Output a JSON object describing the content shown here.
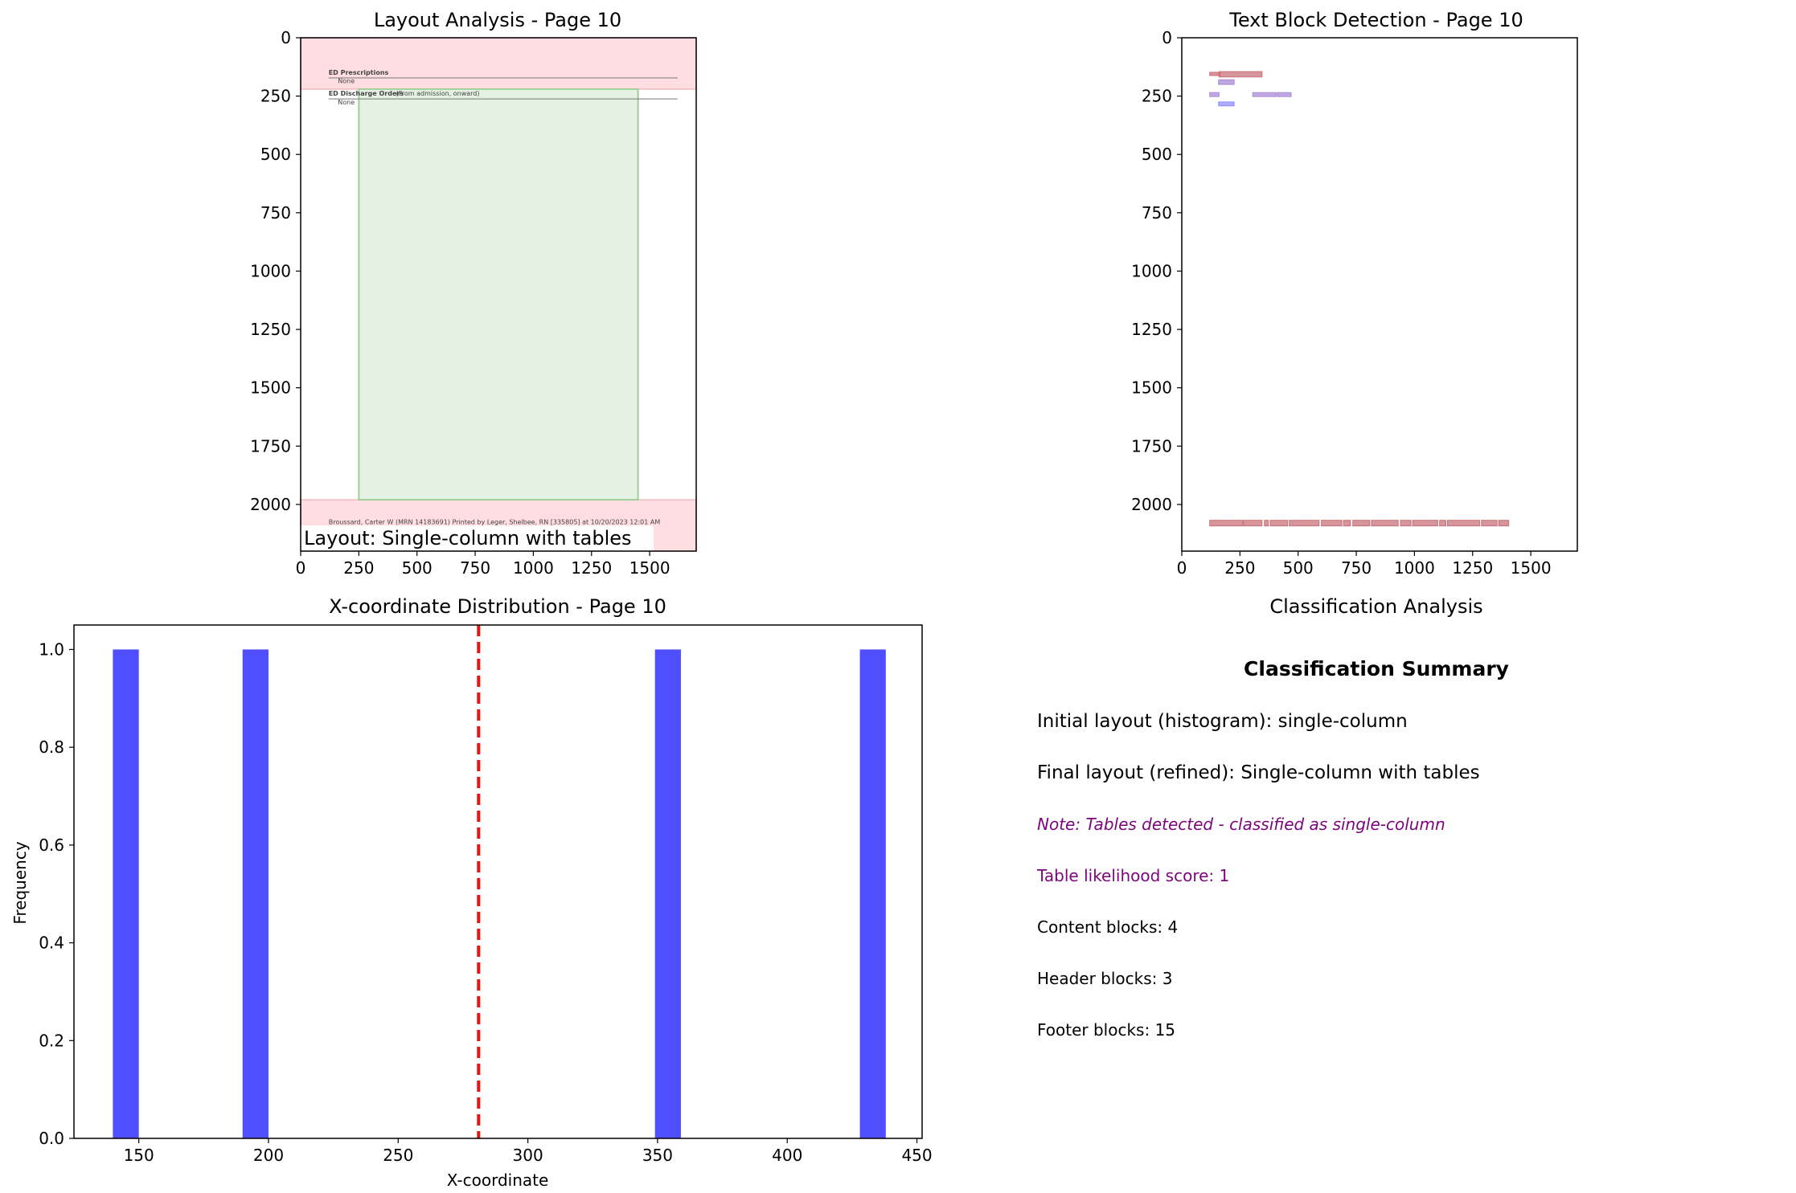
{
  "colors": {
    "header_region": "#ffdde0",
    "content_region": "#e5f2e3",
    "content_region_border": "#9fd09a",
    "block_red": "#c9707a",
    "block_purple": "#a98ad6",
    "block_blue": "#8f8fff",
    "hist_bar": "#4f4fff",
    "threshold_line": "#ee1111",
    "note_purple": "#7b057b"
  },
  "layout_panel": {
    "title": "Layout Analysis - Page 10",
    "xlim": [
      0,
      1700
    ],
    "ylim": [
      2200,
      0
    ],
    "x_ticks": [
      0,
      250,
      500,
      750,
      1000,
      1250,
      1500
    ],
    "y_ticks": [
      0,
      250,
      500,
      750,
      1000,
      1250,
      1500,
      1750,
      2000
    ],
    "header_region": {
      "y_from": 0,
      "y_to": 220
    },
    "footer_region": {
      "y_from": 1980,
      "y_to": 2200
    },
    "content_region": {
      "x_from": 250,
      "x_to": 1450,
      "y_from": 220,
      "y_to": 1980
    },
    "doc_text": {
      "rx_heading": "ED Prescriptions",
      "rx_value": "None",
      "orders_heading": "ED Discharge Orders",
      "orders_sub": "(From admission, onward)",
      "orders_value": "None",
      "footer_line": "Broussard, Carter W (MRN 14183691) Printed by Leger, Shelbee, RN [335805] at 10/20/2023 12:01 AM"
    },
    "layout_label": "Layout: Single-column with tables"
  },
  "text_block_panel": {
    "title": "Text Block Detection - Page 10",
    "xlim": [
      0,
      1700
    ],
    "ylim": [
      2200,
      0
    ],
    "x_ticks": [
      0,
      250,
      500,
      750,
      1000,
      1250,
      1500
    ],
    "y_ticks": [
      0,
      250,
      500,
      750,
      1000,
      1250,
      1500,
      1750,
      2000
    ],
    "blocks": [
      {
        "x0": 120,
        "x1": 165,
        "y0": 148,
        "y1": 162,
        "kind": "red"
      },
      {
        "x0": 160,
        "x1": 345,
        "y0": 145,
        "y1": 168,
        "kind": "red"
      },
      {
        "x0": 158,
        "x1": 225,
        "y0": 180,
        "y1": 200,
        "kind": "purple"
      },
      {
        "x0": 120,
        "x1": 160,
        "y0": 235,
        "y1": 252,
        "kind": "purple"
      },
      {
        "x0": 305,
        "x1": 405,
        "y0": 235,
        "y1": 252,
        "kind": "purple"
      },
      {
        "x0": 410,
        "x1": 470,
        "y0": 235,
        "y1": 252,
        "kind": "purple"
      },
      {
        "x0": 158,
        "x1": 225,
        "y0": 275,
        "y1": 292,
        "kind": "blue"
      },
      {
        "x0": 120,
        "x1": 262,
        "y0": 2068,
        "y1": 2092,
        "kind": "red"
      },
      {
        "x0": 265,
        "x1": 345,
        "y0": 2068,
        "y1": 2092,
        "kind": "red"
      },
      {
        "x0": 355,
        "x1": 372,
        "y0": 2068,
        "y1": 2092,
        "kind": "red"
      },
      {
        "x0": 380,
        "x1": 455,
        "y0": 2068,
        "y1": 2092,
        "kind": "red"
      },
      {
        "x0": 462,
        "x1": 590,
        "y0": 2068,
        "y1": 2092,
        "kind": "red"
      },
      {
        "x0": 600,
        "x1": 688,
        "y0": 2068,
        "y1": 2092,
        "kind": "red"
      },
      {
        "x0": 695,
        "x1": 725,
        "y0": 2068,
        "y1": 2092,
        "kind": "red"
      },
      {
        "x0": 735,
        "x1": 808,
        "y0": 2068,
        "y1": 2092,
        "kind": "red"
      },
      {
        "x0": 815,
        "x1": 930,
        "y0": 2068,
        "y1": 2092,
        "kind": "red"
      },
      {
        "x0": 940,
        "x1": 985,
        "y0": 2068,
        "y1": 2092,
        "kind": "red"
      },
      {
        "x0": 992,
        "x1": 1100,
        "y0": 2068,
        "y1": 2092,
        "kind": "red"
      },
      {
        "x0": 1108,
        "x1": 1135,
        "y0": 2068,
        "y1": 2092,
        "kind": "red"
      },
      {
        "x0": 1142,
        "x1": 1280,
        "y0": 2068,
        "y1": 2092,
        "kind": "red"
      },
      {
        "x0": 1288,
        "x1": 1355,
        "y0": 2068,
        "y1": 2092,
        "kind": "red"
      },
      {
        "x0": 1362,
        "x1": 1405,
        "y0": 2068,
        "y1": 2092,
        "kind": "red"
      }
    ]
  },
  "chart_data": {
    "type": "bar",
    "title": "X-coordinate Distribution - Page 10",
    "xlabel": "X-coordinate",
    "ylabel": "Frequency",
    "xlim": [
      125,
      452
    ],
    "ylim": [
      0,
      1.05
    ],
    "x_ticks": [
      150,
      200,
      250,
      300,
      350,
      400,
      450
    ],
    "y_ticks": [
      0.0,
      0.2,
      0.4,
      0.6,
      0.8,
      1.0
    ],
    "y_tick_labels": [
      "0.0",
      "0.2",
      "0.4",
      "0.6",
      "0.8",
      "1.0"
    ],
    "bars": [
      {
        "x0": 140,
        "x1": 150,
        "value": 1
      },
      {
        "x0": 190,
        "x1": 200,
        "value": 1
      },
      {
        "x0": 349,
        "x1": 359,
        "value": 1
      },
      {
        "x0": 428,
        "x1": 438,
        "value": 1
      }
    ],
    "threshold_x": 281
  },
  "classification": {
    "panel_title": "Classification Analysis",
    "summary_title": "Classification Summary",
    "lines": [
      {
        "text": "Initial layout (histogram): single-column",
        "style": "normal"
      },
      {
        "text": "Final layout (refined): Single-column with tables",
        "style": "normal"
      },
      {
        "text": "Note: Tables detected - classified as single-column",
        "style": "note"
      },
      {
        "text": "Table likelihood score: 1",
        "style": "purple"
      },
      {
        "text": "Content blocks: 4",
        "style": "small"
      },
      {
        "text": "Header blocks: 3",
        "style": "small"
      },
      {
        "text": "Footer blocks: 15",
        "style": "small"
      }
    ]
  }
}
